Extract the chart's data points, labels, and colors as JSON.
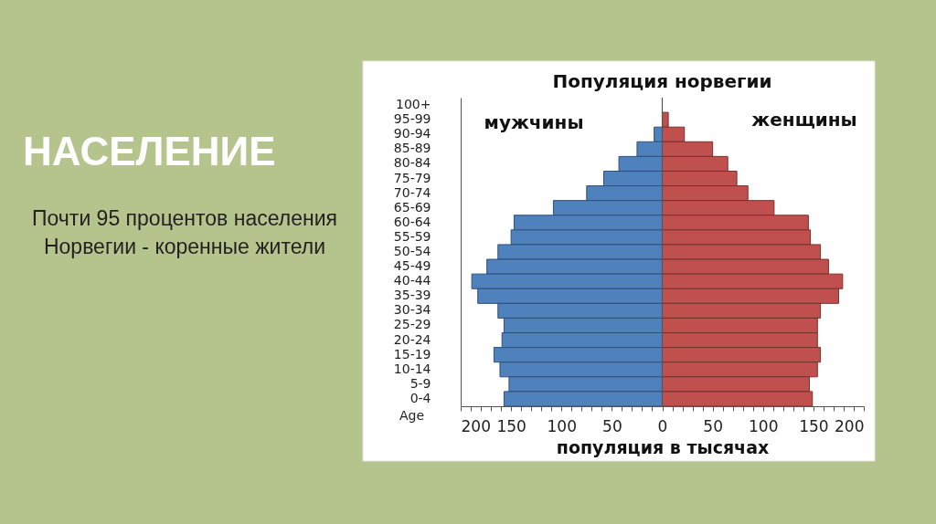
{
  "chart_data": {
    "type": "bar",
    "orientation": "horizontal",
    "stacked": true,
    "title": "Популяция норвегии",
    "xlabel": "популяция в тысячах",
    "ylabel": "Age",
    "categories": [
      "100+",
      "95-99",
      "90-94",
      "85-89",
      "80-84",
      "75-79",
      "70-74",
      "65-69",
      "60-64",
      "55-59",
      "50-54",
      "45-49",
      "40-44",
      "35-39",
      "30-34",
      "25-29",
      "20-24",
      "15-19",
      "10-14",
      "5-9",
      "0-4"
    ],
    "series": [
      {
        "name": "мужчины",
        "color": "#4f81bd",
        "values": [
          0,
          0,
          -8,
          -25,
          -43,
          -58,
          -75,
          -108,
          -147,
          -150,
          -163,
          -174,
          -189,
          -183,
          -163,
          -157,
          -159,
          -167,
          -161,
          -152,
          -157
        ]
      },
      {
        "name": "женщины",
        "color": "#c0504d",
        "values": [
          0,
          6,
          22,
          50,
          65,
          74,
          85,
          111,
          145,
          147,
          157,
          165,
          179,
          175,
          157,
          154,
          154,
          157,
          154,
          146,
          149
        ]
      }
    ],
    "xlim": [
      -200,
      200
    ],
    "xticks": [
      {
        "value": -200,
        "label": "200"
      },
      {
        "value": -190,
        "label": null
      },
      {
        "value": -180,
        "label": null
      },
      {
        "value": -170,
        "label": null
      },
      {
        "value": -160,
        "label": null
      },
      {
        "value": -150,
        "label": "150"
      },
      {
        "value": -140,
        "label": null
      },
      {
        "value": -130,
        "label": null
      },
      {
        "value": -120,
        "label": null
      },
      {
        "value": -110,
        "label": null
      },
      {
        "value": -100,
        "label": "100"
      },
      {
        "value": -90,
        "label": null
      },
      {
        "value": -80,
        "label": null
      },
      {
        "value": -70,
        "label": null
      },
      {
        "value": -60,
        "label": null
      },
      {
        "value": -50,
        "label": "50"
      },
      {
        "value": -40,
        "label": null
      },
      {
        "value": -30,
        "label": null
      },
      {
        "value": -20,
        "label": null
      },
      {
        "value": -10,
        "label": null
      },
      0,
      {
        "value": 10,
        "label": null
      },
      {
        "value": 20,
        "label": null
      },
      {
        "value": 30,
        "label": null
      },
      {
        "value": 40,
        "label": null
      },
      50,
      {
        "value": 60,
        "label": null
      },
      {
        "value": 70,
        "label": null
      },
      {
        "value": 80,
        "label": null
      },
      {
        "value": 90,
        "label": null
      },
      100,
      {
        "value": 110,
        "label": null
      },
      {
        "value": 120,
        "label": null
      },
      {
        "value": 130,
        "label": null
      },
      {
        "value": 140,
        "label": null
      },
      150,
      {
        "value": 160,
        "label": null
      },
      {
        "value": 170,
        "label": null
      },
      {
        "value": 180,
        "label": null
      },
      {
        "value": 190,
        "label": null
      },
      200
    ],
    "ref_lines": [
      {
        "axis": "x",
        "value": 0,
        "color": "#555555"
      }
    ],
    "annotations": [
      "НАСЕЛЕНИЕ",
      "Почти 95 процентов населения Норвегии - коренные жители"
    ]
  }
}
